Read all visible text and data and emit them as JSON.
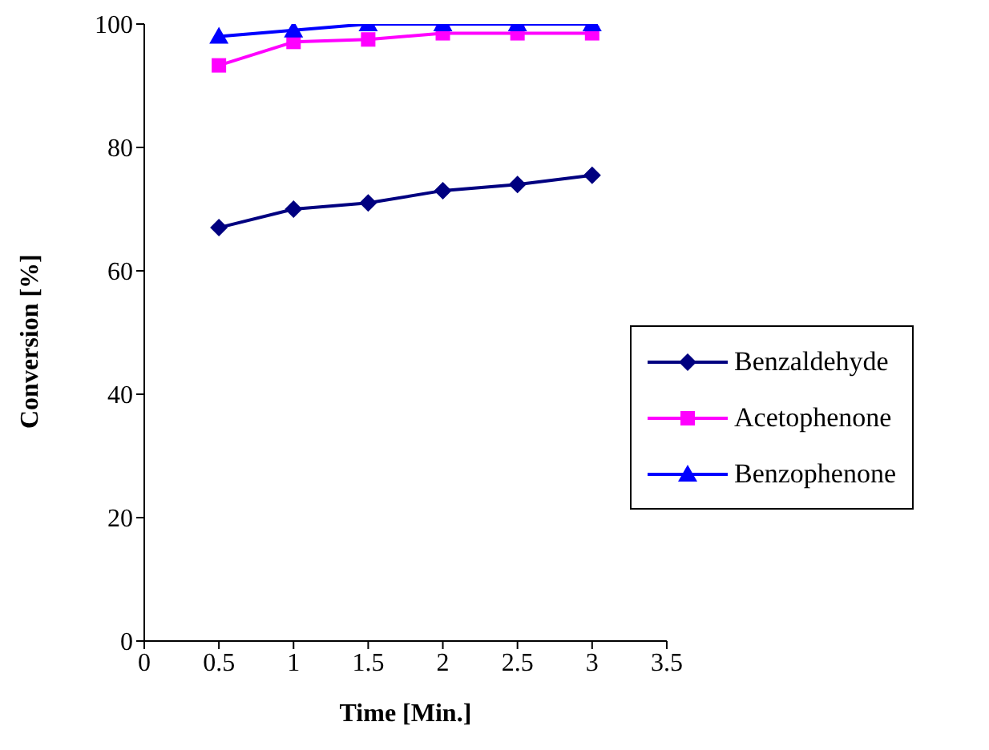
{
  "chart_data": {
    "type": "line",
    "xlabel": "Time [Min.]",
    "ylabel": "Conversion [%]",
    "x": [
      0.5,
      1,
      1.5,
      2,
      2.5,
      3
    ],
    "series": [
      {
        "name": "Benzaldehyde",
        "color": "#000080",
        "marker": "diamond",
        "values": [
          67,
          70,
          71,
          73,
          74,
          75.5
        ]
      },
      {
        "name": "Acetophenone",
        "color": "#ff00ff",
        "marker": "square",
        "values": [
          93.3,
          97.1,
          97.5,
          98.5,
          98.5,
          98.5
        ]
      },
      {
        "name": "Benzophenone",
        "color": "#0000ff",
        "marker": "triangle",
        "values": [
          98,
          99,
          100,
          100,
          100,
          100
        ]
      }
    ],
    "xlim": [
      0,
      3.5
    ],
    "xticks": [
      0,
      0.5,
      1,
      1.5,
      2,
      2.5,
      3,
      3.5
    ],
    "ylim": [
      0,
      100
    ],
    "yticks": [
      0,
      20,
      40,
      60,
      80,
      100
    ],
    "grid": false,
    "legend": "right",
    "line_style": "solid"
  }
}
